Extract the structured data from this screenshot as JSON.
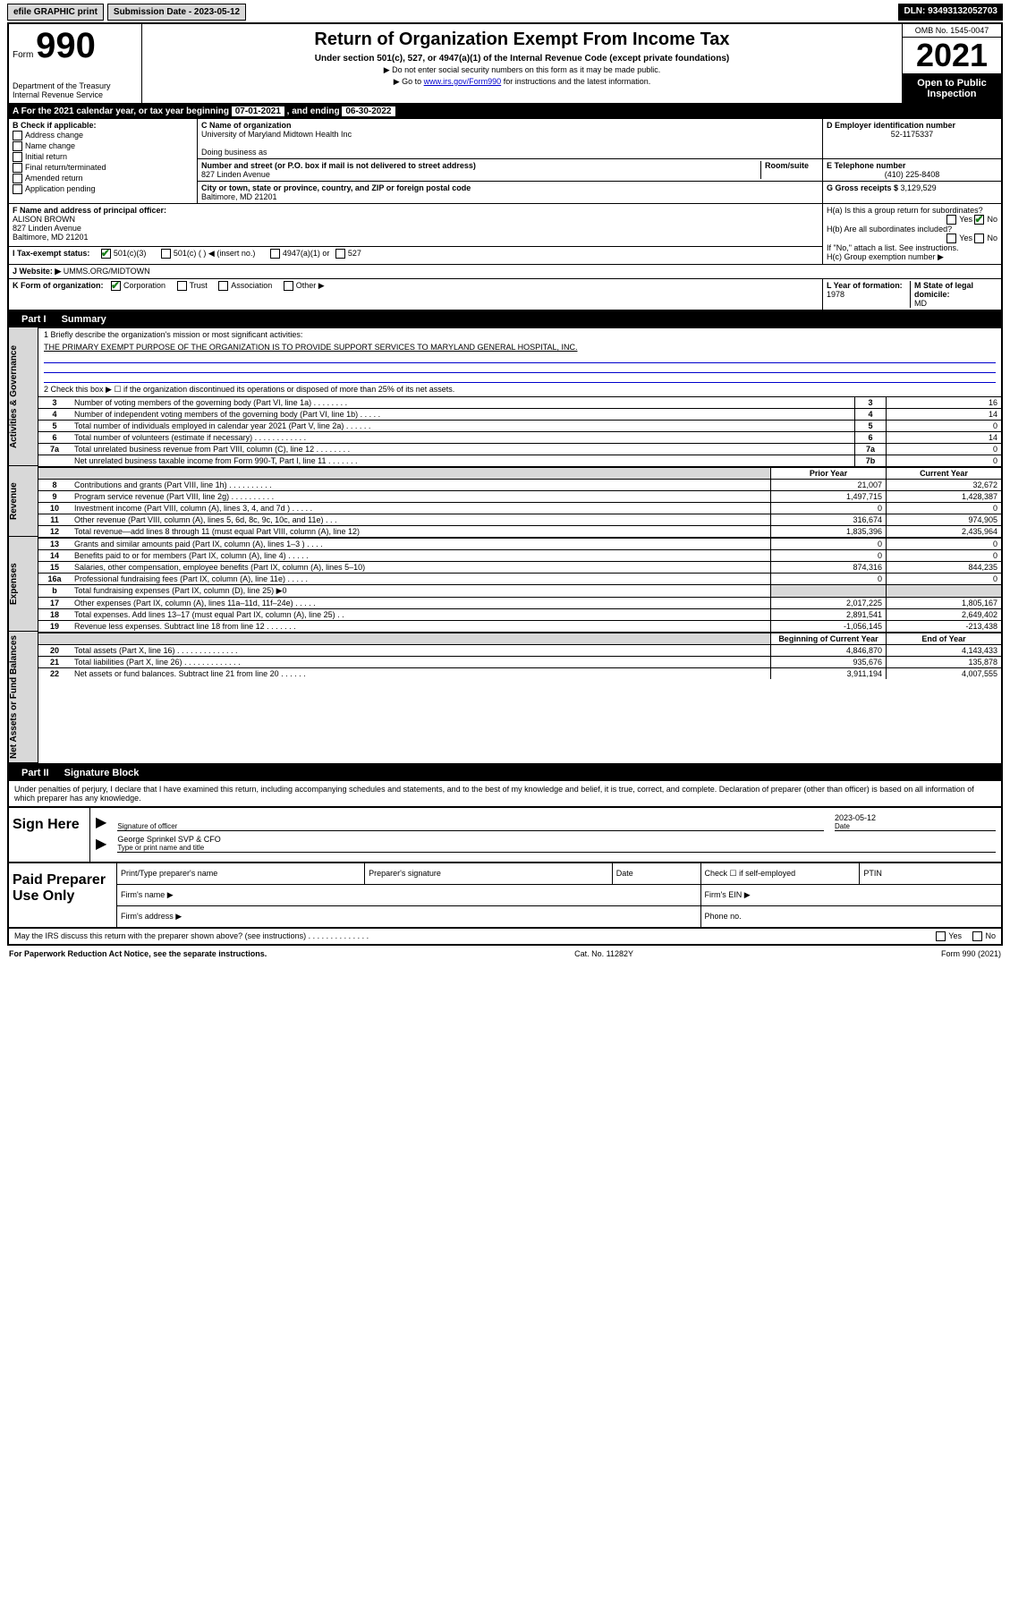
{
  "topbar": {
    "efile": "efile GRAPHIC print",
    "submission": "Submission Date - 2023-05-12",
    "dln": "DLN: 93493132052703"
  },
  "hdr": {
    "form_word": "Form",
    "form_num": "990",
    "dept": "Department of the Treasury\nInternal Revenue Service",
    "title": "Return of Organization Exempt From Income Tax",
    "sub": "Under section 501(c), 527, or 4947(a)(1) of the Internal Revenue Code (except private foundations)",
    "sub2a": "▶ Do not enter social security numbers on this form as it may be made public.",
    "sub2b_pre": "▶ Go to ",
    "sub2b_link": "www.irs.gov/Form990",
    "sub2b_post": " for instructions and the latest information.",
    "omb": "OMB No. 1545-0047",
    "year": "2021",
    "inspect": "Open to Public Inspection"
  },
  "tax_year": {
    "label_a": "A For the 2021 calendar year, or tax year beginning ",
    "begin": "07-01-2021",
    "mid": " , and ending ",
    "end": "06-30-2022"
  },
  "checks": {
    "b_hdr": "B Check if applicable:",
    "addr_change": "Address change",
    "name_change": "Name change",
    "initial": "Initial return",
    "final": "Final return/terminated",
    "amended": "Amended return",
    "app_pending": "Application pending"
  },
  "orgname": {
    "c_hdr": "C Name of organization",
    "name": "University of Maryland Midtown Health Inc",
    "dba_hdr": "Doing business as",
    "dba": "",
    "street_hdr": "Number and street (or P.O. box if mail is not delivered to street address)",
    "room_hdr": "Room/suite",
    "street": "827 Linden Avenue",
    "city_hdr": "City or town, state or province, country, and ZIP or foreign postal code",
    "city": "Baltimore, MD  21201"
  },
  "right_col": {
    "d_hdr": "D Employer identification number",
    "ein": "52-1175337",
    "e_hdr": "E Telephone number",
    "phone": "(410) 225-8408",
    "g_hdr": "G Gross receipts $ ",
    "gross": "3,129,529"
  },
  "officer": {
    "f_hdr": "F Name and address of principal officer:",
    "name": "ALISON BROWN",
    "addr1": "827 Linden Avenue",
    "addr2": "Baltimore, MD  21201"
  },
  "h": {
    "ha": "H(a)  Is this a group return for subordinates?",
    "hb": "H(b)  Are all subordinates included?",
    "hb_note": "If \"No,\" attach a list. See instructions.",
    "hc": "H(c)  Group exemption number ▶",
    "yes": "Yes",
    "no": "No"
  },
  "i": {
    "label": "I  Tax-exempt status:",
    "opt1": "501(c)(3)",
    "opt2": "501(c) (  ) ◀ (insert no.)",
    "opt3": "4947(a)(1) or",
    "opt4": "527"
  },
  "j": {
    "label": "J  Website: ▶",
    "value": "UMMS.ORG/MIDTOWN"
  },
  "k": {
    "label": "K Form of organization:",
    "corp": "Corporation",
    "trust": "Trust",
    "assoc": "Association",
    "other": "Other ▶",
    "l_label": "L Year of formation: ",
    "l_val": "1978",
    "m_label": "M State of legal domicile:",
    "m_val": "MD"
  },
  "parts": {
    "p1": "Part I",
    "p1_title": "Summary",
    "p2": "Part II",
    "p2_title": "Signature Block"
  },
  "sides": {
    "ag": "Activities & Governance",
    "rev": "Revenue",
    "exp": "Expenses",
    "net": "Net Assets or Fund Balances"
  },
  "summary": {
    "l1_label": "1  Briefly describe the organization's mission or most significant activities:",
    "l1_text": "THE PRIMARY EXEMPT PURPOSE OF THE ORGANIZATION IS TO PROVIDE SUPPORT SERVICES TO MARYLAND GENERAL HOSPITAL, INC.",
    "l2_label": "2  Check this box ▶ ☐ if the organization discontinued its operations or disposed of more than 25% of its net assets.",
    "col_hdrs": {
      "prior": "Prior Year",
      "current": "Current Year",
      "begin": "Beginning of Current Year",
      "end": "End of Year"
    },
    "rows_ag": [
      {
        "n": "3",
        "desc": "Number of voting members of the governing body (Part VI, line 1a)  .  .  .  .  .  .  .  .",
        "box": "3",
        "v": "16"
      },
      {
        "n": "4",
        "desc": "Number of independent voting members of the governing body (Part VI, line 1b)  .  .  .  .  .",
        "box": "4",
        "v": "14"
      },
      {
        "n": "5",
        "desc": "Total number of individuals employed in calendar year 2021 (Part V, line 2a)  .  .  .  .  .  .",
        "box": "5",
        "v": "0"
      },
      {
        "n": "6",
        "desc": "Total number of volunteers (estimate if necessary)  .  .  .  .  .  .  .  .  .  .  .  .",
        "box": "6",
        "v": "14"
      },
      {
        "n": "7a",
        "desc": "Total unrelated business revenue from Part VIII, column (C), line 12  .  .  .  .  .  .  .  .",
        "box": "7a",
        "v": "0"
      },
      {
        "n": "",
        "desc": "Net unrelated business taxable income from Form 990-T, Part I, line 11  .  .  .  .  .  .  .",
        "box": "7b",
        "v": "0"
      }
    ],
    "rows_rev": [
      {
        "n": "8",
        "desc": "Contributions and grants (Part VIII, line 1h)  .  .  .  .  .  .  .  .  .  .",
        "p": "21,007",
        "c": "32,672"
      },
      {
        "n": "9",
        "desc": "Program service revenue (Part VIII, line 2g)  .  .  .  .  .  .  .  .  .  .",
        "p": "1,497,715",
        "c": "1,428,387"
      },
      {
        "n": "10",
        "desc": "Investment income (Part VIII, column (A), lines 3, 4, and 7d )  .  .  .  .  .",
        "p": "0",
        "c": "0"
      },
      {
        "n": "11",
        "desc": "Other revenue (Part VIII, column (A), lines 5, 6d, 8c, 9c, 10c, and 11e)  .  .  .",
        "p": "316,674",
        "c": "974,905"
      },
      {
        "n": "12",
        "desc": "Total revenue—add lines 8 through 11 (must equal Part VIII, column (A), line 12)",
        "p": "1,835,396",
        "c": "2,435,964"
      }
    ],
    "rows_exp": [
      {
        "n": "13",
        "desc": "Grants and similar amounts paid (Part IX, column (A), lines 1–3 )  .  .  .  .",
        "p": "0",
        "c": "0"
      },
      {
        "n": "14",
        "desc": "Benefits paid to or for members (Part IX, column (A), line 4)  .  .  .  .  .",
        "p": "0",
        "c": "0"
      },
      {
        "n": "15",
        "desc": "Salaries, other compensation, employee benefits (Part IX, column (A), lines 5–10)",
        "p": "874,316",
        "c": "844,235"
      },
      {
        "n": "16a",
        "desc": "Professional fundraising fees (Part IX, column (A), line 11e)  .  .  .  .  .",
        "p": "0",
        "c": "0"
      },
      {
        "n": "b",
        "desc": "Total fundraising expenses (Part IX, column (D), line 25) ▶0",
        "p": "",
        "c": "",
        "grey": true
      },
      {
        "n": "17",
        "desc": "Other expenses (Part IX, column (A), lines 11a–11d, 11f–24e)  .  .  .  .  .",
        "p": "2,017,225",
        "c": "1,805,167"
      },
      {
        "n": "18",
        "desc": "Total expenses. Add lines 13–17 (must equal Part IX, column (A), line 25)  .  .",
        "p": "2,891,541",
        "c": "2,649,402"
      },
      {
        "n": "19",
        "desc": "Revenue less expenses. Subtract line 18 from line 12  .  .  .  .  .  .  .",
        "p": "-1,056,145",
        "c": "-213,438"
      }
    ],
    "rows_net": [
      {
        "n": "20",
        "desc": "Total assets (Part X, line 16)  .  .  .  .  .  .  .  .  .  .  .  .  .  .",
        "p": "4,846,870",
        "c": "4,143,433"
      },
      {
        "n": "21",
        "desc": "Total liabilities (Part X, line 26)  .  .  .  .  .  .  .  .  .  .  .  .  .",
        "p": "935,676",
        "c": "135,878"
      },
      {
        "n": "22",
        "desc": "Net assets or fund balances. Subtract line 21 from line 20  .  .  .  .  .  .",
        "p": "3,911,194",
        "c": "4,007,555"
      }
    ]
  },
  "sig": {
    "declaration": "Under penalties of perjury, I declare that I have examined this return, including accompanying schedules and statements, and to the best of my knowledge and belief, it is true, correct, and complete. Declaration of preparer (other than officer) is based on all information of which preparer has any knowledge.",
    "sign_here": "Sign Here",
    "sig_officer": "Signature of officer",
    "date": "Date",
    "sig_date": "2023-05-12",
    "name_title": "George Sprinkel SVP & CFO",
    "name_title_lbl": "Type or print name and title",
    "paid": "Paid Preparer Use Only",
    "prep_name": "Print/Type preparer's name",
    "prep_sig": "Preparer's signature",
    "prep_date": "Date",
    "check_if": "Check ☐ if self-employed",
    "ptin": "PTIN",
    "firm_name": "Firm's name  ▶",
    "firm_ein": "Firm's EIN ▶",
    "firm_addr": "Firm's address ▶",
    "phone": "Phone no."
  },
  "footer": {
    "discuss": "May the IRS discuss this return with the preparer shown above? (see instructions)  .  .  .  .  .  .  .  .  .  .  .  .  .  .",
    "yes": "Yes",
    "no": "No",
    "pwra": "For Paperwork Reduction Act Notice, see the separate instructions.",
    "cat": "Cat. No. 11282Y",
    "form": "Form 990 (2021)"
  }
}
